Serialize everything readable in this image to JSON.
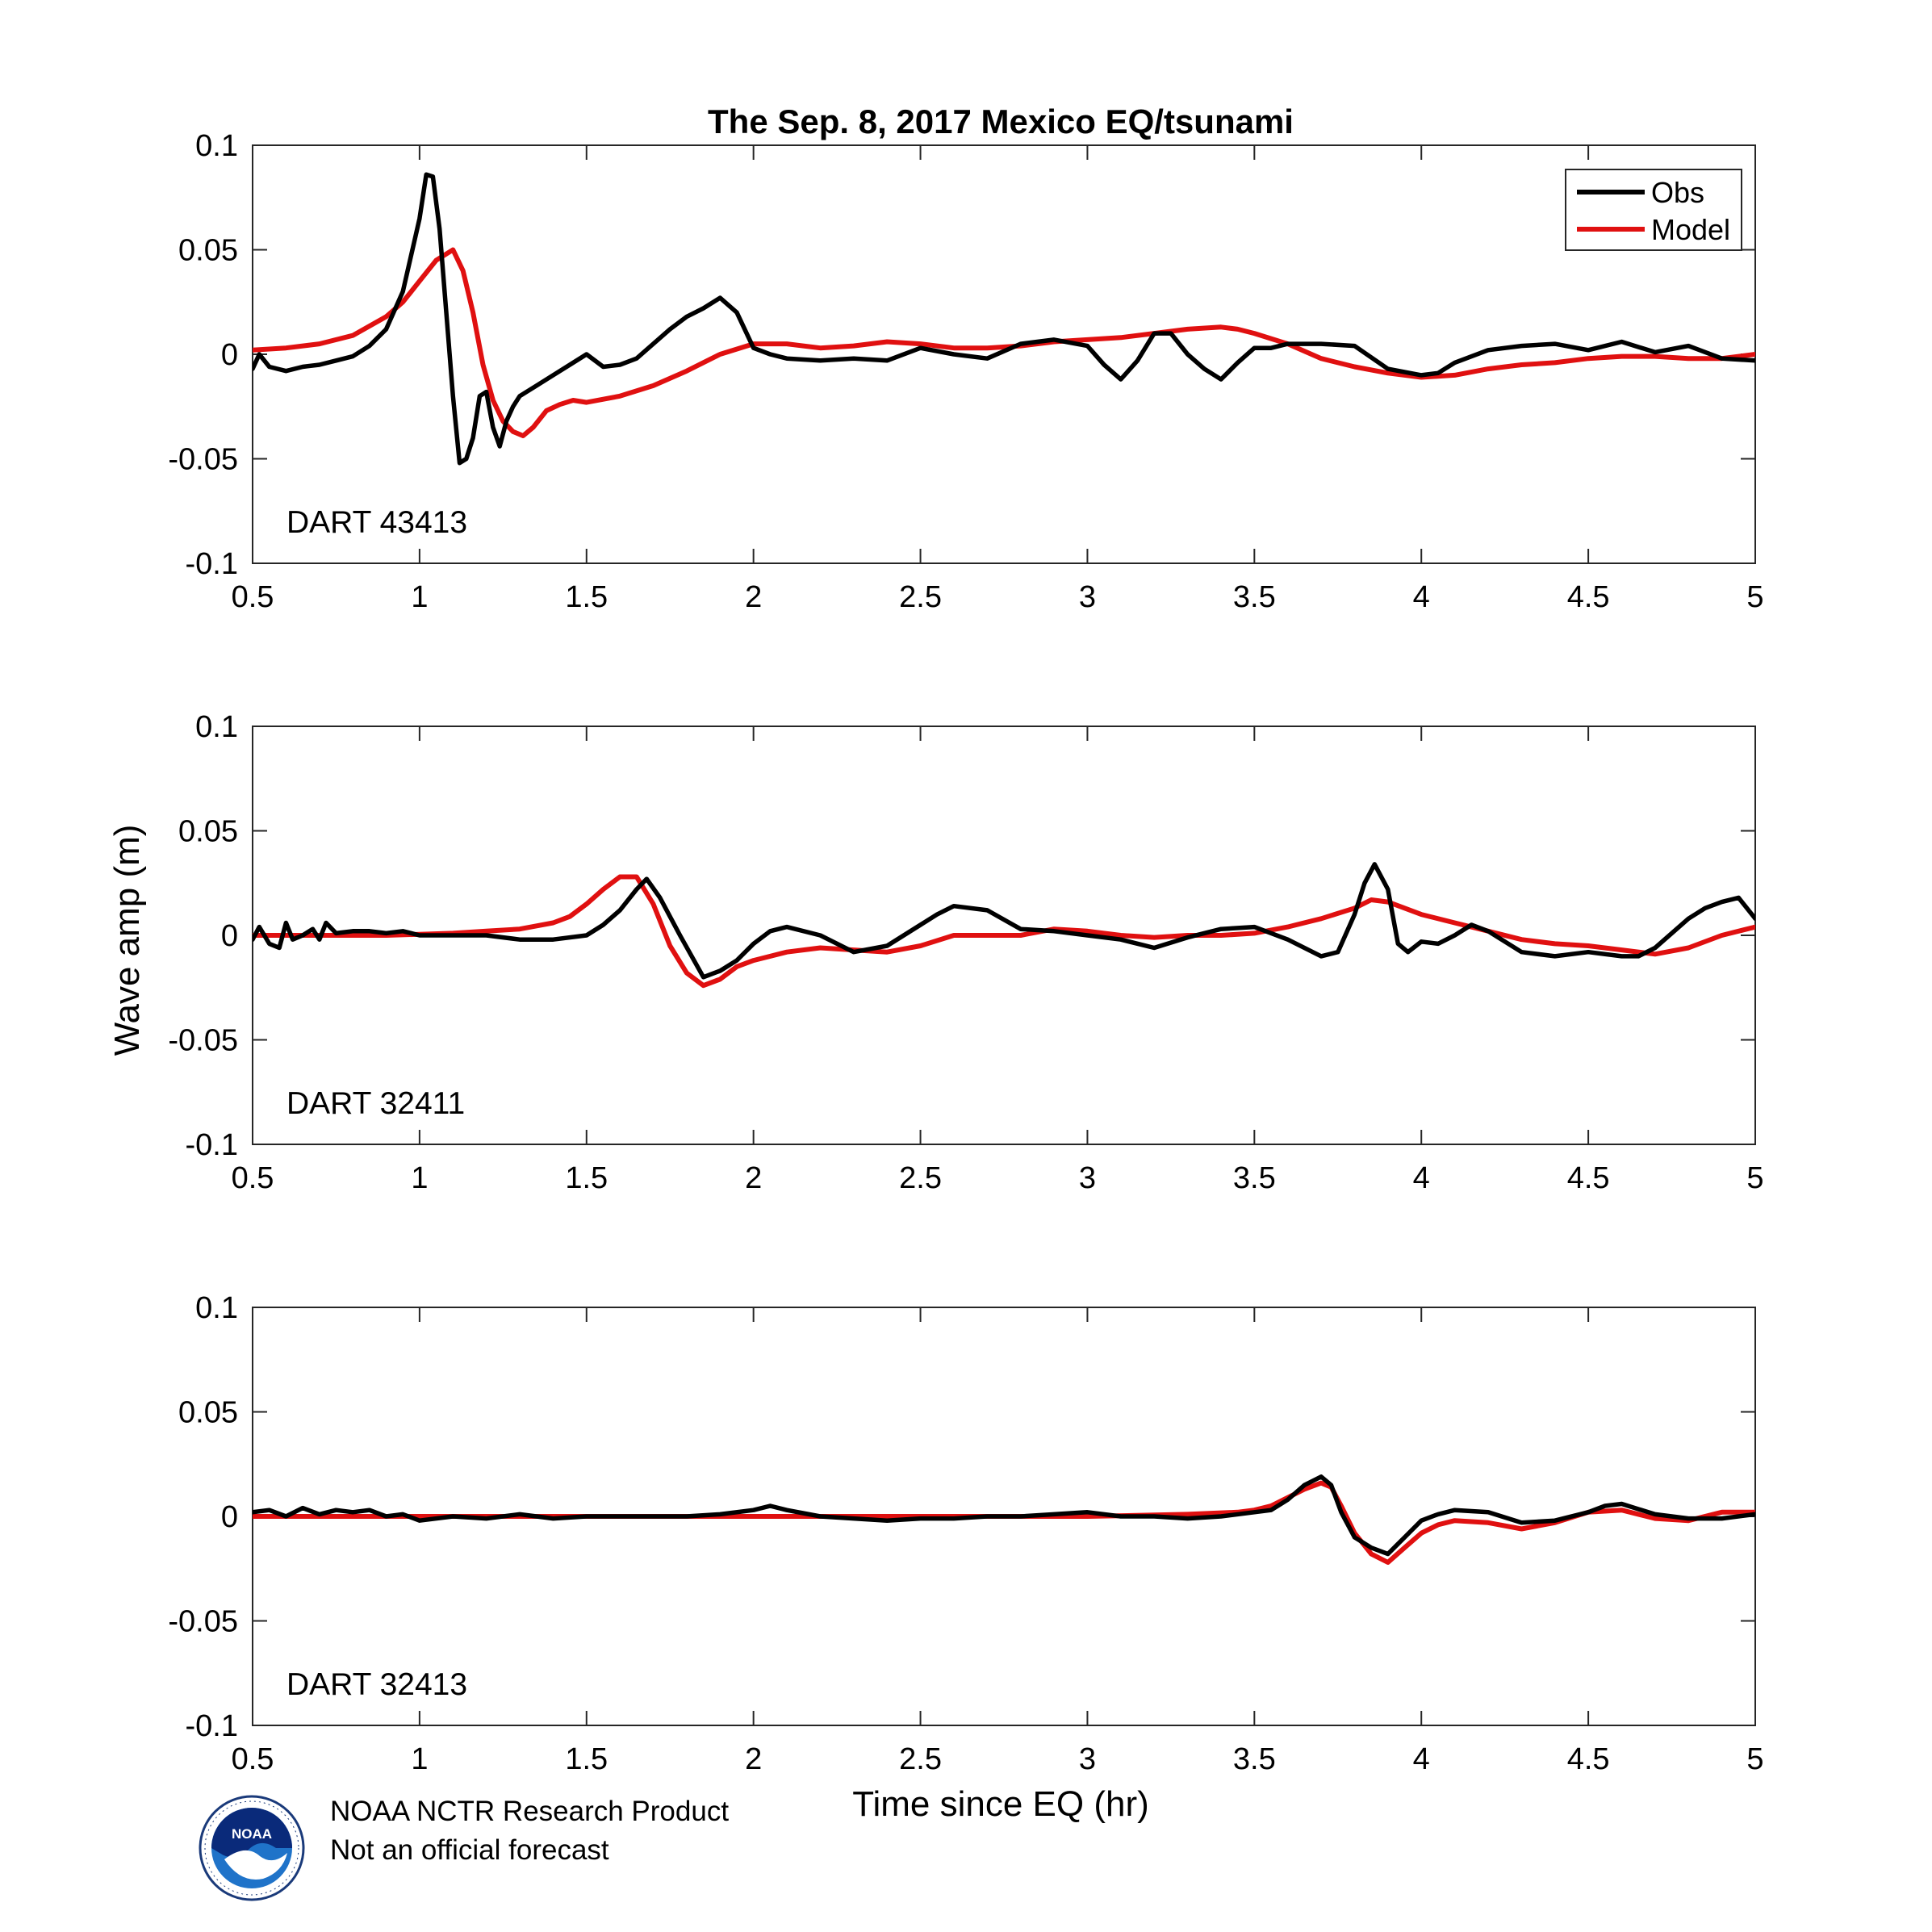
{
  "figure": {
    "title": "The Sep. 8, 2017 Mexico EQ/tsunami",
    "xlabel": "Time since EQ (hr)",
    "ylabel": "Wave amp (m)",
    "legend": [
      {
        "label": "Obs",
        "color": "#000000"
      },
      {
        "label": "Model",
        "color": "#e01010"
      }
    ],
    "footer": {
      "line1": "NOAA NCTR Research Product",
      "line2": "Not an official forecast",
      "logo_name": "noaa-logo"
    }
  },
  "chart_data": [
    {
      "type": "line",
      "station": "DART 43413",
      "xlim": [
        0.5,
        5
      ],
      "ylim": [
        -0.1,
        0.1
      ],
      "xticks": [
        0.5,
        1,
        1.5,
        2,
        2.5,
        3,
        3.5,
        4,
        4.5,
        5
      ],
      "xtick_labels": [
        "0.5",
        "1",
        "1.5",
        "2",
        "2.5",
        "3",
        "3.5",
        "4",
        "4.5",
        "5"
      ],
      "yticks": [
        0.1,
        0.05,
        0,
        -0.05,
        -0.1
      ],
      "ytick_labels": [
        "0.1",
        "0.05",
        "0",
        "-0.05",
        "-0.1"
      ],
      "series": [
        {
          "name": "Obs",
          "color": "#000000",
          "x": [
            0.5,
            0.52,
            0.55,
            0.6,
            0.65,
            0.7,
            0.75,
            0.8,
            0.85,
            0.9,
            0.95,
            1.0,
            1.02,
            1.04,
            1.06,
            1.08,
            1.1,
            1.12,
            1.14,
            1.16,
            1.18,
            1.2,
            1.22,
            1.24,
            1.26,
            1.28,
            1.3,
            1.35,
            1.4,
            1.45,
            1.5,
            1.55,
            1.6,
            1.65,
            1.7,
            1.75,
            1.8,
            1.85,
            1.9,
            1.95,
            2.0,
            2.05,
            2.1,
            2.2,
            2.3,
            2.4,
            2.5,
            2.6,
            2.7,
            2.8,
            2.9,
            3.0,
            3.05,
            3.1,
            3.15,
            3.2,
            3.25,
            3.3,
            3.35,
            3.4,
            3.45,
            3.5,
            3.55,
            3.6,
            3.7,
            3.8,
            3.9,
            4.0,
            4.05,
            4.1,
            4.2,
            4.3,
            4.4,
            4.5,
            4.6,
            4.7,
            4.8,
            4.9,
            5.0
          ],
          "y": [
            -0.007,
            0.0,
            -0.006,
            -0.008,
            -0.006,
            -0.005,
            -0.003,
            -0.001,
            0.004,
            0.012,
            0.03,
            0.065,
            0.086,
            0.085,
            0.06,
            0.02,
            -0.02,
            -0.052,
            -0.05,
            -0.04,
            -0.02,
            -0.018,
            -0.035,
            -0.044,
            -0.032,
            -0.025,
            -0.02,
            -0.015,
            -0.01,
            -0.005,
            0.0,
            -0.006,
            -0.005,
            -0.002,
            0.005,
            0.012,
            0.018,
            0.022,
            0.027,
            0.02,
            0.003,
            0.0,
            -0.002,
            -0.003,
            -0.002,
            -0.003,
            0.003,
            0.0,
            -0.002,
            0.005,
            0.007,
            0.004,
            -0.005,
            -0.012,
            -0.003,
            0.01,
            0.01,
            0.0,
            -0.007,
            -0.012,
            -0.004,
            0.003,
            0.003,
            0.005,
            0.005,
            0.004,
            -0.007,
            -0.01,
            -0.009,
            -0.004,
            0.002,
            0.004,
            0.005,
            0.002,
            0.006,
            0.001,
            0.004,
            -0.002,
            -0.003
          ]
        },
        {
          "name": "Model",
          "color": "#e01010",
          "x": [
            0.5,
            0.6,
            0.7,
            0.8,
            0.9,
            0.95,
            1.0,
            1.05,
            1.1,
            1.13,
            1.16,
            1.19,
            1.22,
            1.25,
            1.28,
            1.31,
            1.34,
            1.38,
            1.42,
            1.46,
            1.5,
            1.6,
            1.7,
            1.8,
            1.9,
            2.0,
            2.1,
            2.2,
            2.3,
            2.4,
            2.5,
            2.6,
            2.7,
            2.8,
            2.9,
            3.0,
            3.1,
            3.2,
            3.3,
            3.4,
            3.45,
            3.5,
            3.6,
            3.7,
            3.8,
            3.9,
            4.0,
            4.1,
            4.2,
            4.3,
            4.4,
            4.5,
            4.6,
            4.7,
            4.8,
            4.9,
            5.0
          ],
          "y": [
            0.002,
            0.003,
            0.005,
            0.009,
            0.018,
            0.025,
            0.035,
            0.045,
            0.05,
            0.04,
            0.02,
            -0.005,
            -0.022,
            -0.032,
            -0.037,
            -0.039,
            -0.035,
            -0.027,
            -0.024,
            -0.022,
            -0.023,
            -0.02,
            -0.015,
            -0.008,
            0.0,
            0.005,
            0.005,
            0.003,
            0.004,
            0.006,
            0.005,
            0.003,
            0.003,
            0.004,
            0.006,
            0.007,
            0.008,
            0.01,
            0.012,
            0.013,
            0.012,
            0.01,
            0.005,
            -0.002,
            -0.006,
            -0.009,
            -0.011,
            -0.01,
            -0.007,
            -0.005,
            -0.004,
            -0.002,
            -0.001,
            -0.001,
            -0.002,
            -0.002,
            0.0
          ]
        }
      ]
    },
    {
      "type": "line",
      "station": "DART 32411",
      "xlim": [
        0.5,
        5
      ],
      "ylim": [
        -0.1,
        0.1
      ],
      "xticks": [
        0.5,
        1,
        1.5,
        2,
        2.5,
        3,
        3.5,
        4,
        4.5,
        5
      ],
      "xtick_labels": [
        "0.5",
        "1",
        "1.5",
        "2",
        "2.5",
        "3",
        "3.5",
        "4",
        "4.5",
        "5"
      ],
      "yticks": [
        0.1,
        0.05,
        0,
        -0.05,
        -0.1
      ],
      "ytick_labels": [
        "0.1",
        "0.05",
        "0",
        "-0.05",
        "-0.1"
      ],
      "series": [
        {
          "name": "Obs",
          "color": "#000000",
          "x": [
            0.5,
            0.52,
            0.55,
            0.58,
            0.6,
            0.62,
            0.65,
            0.68,
            0.7,
            0.72,
            0.75,
            0.8,
            0.85,
            0.9,
            0.95,
            1.0,
            1.1,
            1.2,
            1.3,
            1.4,
            1.5,
            1.55,
            1.6,
            1.65,
            1.68,
            1.72,
            1.78,
            1.85,
            1.9,
            1.95,
            2.0,
            2.05,
            2.1,
            2.2,
            2.3,
            2.4,
            2.5,
            2.55,
            2.6,
            2.7,
            2.8,
            2.9,
            3.0,
            3.1,
            3.2,
            3.3,
            3.4,
            3.5,
            3.6,
            3.7,
            3.75,
            3.8,
            3.83,
            3.86,
            3.9,
            3.93,
            3.96,
            4.0,
            4.05,
            4.1,
            4.15,
            4.2,
            4.3,
            4.4,
            4.5,
            4.6,
            4.65,
            4.7,
            4.8,
            4.85,
            4.9,
            4.95,
            5.0
          ],
          "y": [
            -0.002,
            0.004,
            -0.004,
            -0.006,
            0.006,
            -0.002,
            0.0,
            0.003,
            -0.002,
            0.006,
            0.001,
            0.002,
            0.002,
            0.001,
            0.002,
            0.0,
            0.0,
            0.0,
            -0.002,
            -0.002,
            0.0,
            0.005,
            0.012,
            0.022,
            0.027,
            0.018,
            0.0,
            -0.02,
            -0.017,
            -0.012,
            -0.004,
            0.002,
            0.004,
            0.0,
            -0.008,
            -0.005,
            0.005,
            0.01,
            0.014,
            0.012,
            0.003,
            0.002,
            0.0,
            -0.002,
            -0.006,
            -0.001,
            0.003,
            0.004,
            -0.002,
            -0.01,
            -0.008,
            0.01,
            0.025,
            0.034,
            0.022,
            -0.004,
            -0.008,
            -0.003,
            -0.004,
            0.0,
            0.005,
            0.002,
            -0.008,
            -0.01,
            -0.008,
            -0.01,
            -0.01,
            -0.006,
            0.008,
            0.013,
            0.016,
            0.018,
            0.008
          ]
        },
        {
          "name": "Model",
          "color": "#e01010",
          "x": [
            0.5,
            0.7,
            0.9,
            1.1,
            1.2,
            1.3,
            1.4,
            1.45,
            1.5,
            1.55,
            1.6,
            1.65,
            1.7,
            1.75,
            1.8,
            1.85,
            1.9,
            1.95,
            2.0,
            2.1,
            2.2,
            2.3,
            2.4,
            2.5,
            2.6,
            2.7,
            2.8,
            2.9,
            3.0,
            3.1,
            3.2,
            3.3,
            3.4,
            3.5,
            3.6,
            3.7,
            3.8,
            3.85,
            3.9,
            4.0,
            4.1,
            4.2,
            4.3,
            4.4,
            4.5,
            4.6,
            4.7,
            4.8,
            4.9,
            5.0
          ],
          "y": [
            0.0,
            0.0,
            0.0,
            0.001,
            0.002,
            0.003,
            0.006,
            0.009,
            0.015,
            0.022,
            0.028,
            0.028,
            0.015,
            -0.005,
            -0.018,
            -0.024,
            -0.021,
            -0.015,
            -0.012,
            -0.008,
            -0.006,
            -0.007,
            -0.008,
            -0.005,
            0.0,
            0.0,
            0.0,
            0.003,
            0.002,
            0.0,
            -0.001,
            0.0,
            0.0,
            0.001,
            0.004,
            0.008,
            0.013,
            0.017,
            0.016,
            0.01,
            0.006,
            0.002,
            -0.002,
            -0.004,
            -0.005,
            -0.007,
            -0.009,
            -0.006,
            0.0,
            0.004
          ]
        }
      ]
    },
    {
      "type": "line",
      "station": "DART 32413",
      "xlim": [
        0.5,
        5
      ],
      "ylim": [
        -0.1,
        0.1
      ],
      "xticks": [
        0.5,
        1,
        1.5,
        2,
        2.5,
        3,
        3.5,
        4,
        4.5,
        5
      ],
      "xtick_labels": [
        "0.5",
        "1",
        "1.5",
        "2",
        "2.5",
        "3",
        "3.5",
        "4",
        "4.5",
        "5"
      ],
      "yticks": [
        0.1,
        0.05,
        0,
        -0.05,
        -0.1
      ],
      "ytick_labels": [
        "0.1",
        "0.05",
        "0",
        "-0.05",
        "-0.1"
      ],
      "series": [
        {
          "name": "Obs",
          "color": "#000000",
          "x": [
            0.5,
            0.55,
            0.6,
            0.65,
            0.7,
            0.75,
            0.8,
            0.85,
            0.9,
            0.95,
            1.0,
            1.1,
            1.2,
            1.3,
            1.4,
            1.5,
            1.6,
            1.7,
            1.8,
            1.9,
            2.0,
            2.05,
            2.1,
            2.2,
            2.3,
            2.4,
            2.5,
            2.6,
            2.7,
            2.8,
            2.9,
            3.0,
            3.1,
            3.2,
            3.3,
            3.4,
            3.5,
            3.55,
            3.6,
            3.65,
            3.7,
            3.73,
            3.76,
            3.8,
            3.85,
            3.9,
            3.95,
            4.0,
            4.05,
            4.1,
            4.2,
            4.3,
            4.4,
            4.5,
            4.55,
            4.6,
            4.7,
            4.8,
            4.9,
            5.0
          ],
          "y": [
            0.002,
            0.003,
            0.0,
            0.004,
            0.001,
            0.003,
            0.002,
            0.003,
            0.0,
            0.001,
            -0.002,
            0.0,
            -0.001,
            0.001,
            -0.001,
            0.0,
            0.0,
            0.0,
            0.0,
            0.001,
            0.003,
            0.005,
            0.003,
            0.0,
            -0.001,
            -0.002,
            -0.001,
            -0.001,
            0.0,
            0.0,
            0.001,
            0.002,
            0.0,
            0.0,
            -0.001,
            0.0,
            0.002,
            0.003,
            0.008,
            0.015,
            0.019,
            0.015,
            0.002,
            -0.01,
            -0.015,
            -0.018,
            -0.01,
            -0.002,
            0.001,
            0.003,
            0.002,
            -0.003,
            -0.002,
            0.002,
            0.005,
            0.006,
            0.001,
            -0.001,
            -0.001,
            0.001
          ]
        },
        {
          "name": "Model",
          "color": "#e01010",
          "x": [
            0.5,
            1.0,
            1.5,
            2.0,
            2.5,
            3.0,
            3.3,
            3.45,
            3.5,
            3.55,
            3.6,
            3.65,
            3.7,
            3.73,
            3.76,
            3.8,
            3.85,
            3.9,
            3.95,
            4.0,
            4.05,
            4.1,
            4.2,
            4.3,
            4.4,
            4.5,
            4.6,
            4.7,
            4.8,
            4.9,
            5.0
          ],
          "y": [
            0.0,
            0.0,
            0.0,
            0.0,
            0.0,
            0.0,
            0.001,
            0.002,
            0.003,
            0.005,
            0.009,
            0.013,
            0.016,
            0.014,
            0.005,
            -0.008,
            -0.018,
            -0.022,
            -0.015,
            -0.008,
            -0.004,
            -0.002,
            -0.003,
            -0.006,
            -0.003,
            0.002,
            0.003,
            -0.001,
            -0.002,
            0.002,
            0.002
          ]
        }
      ]
    }
  ]
}
